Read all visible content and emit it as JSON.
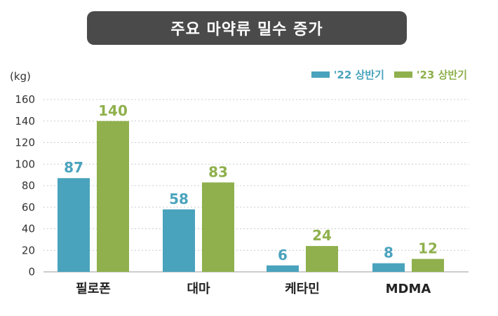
{
  "title": "주요 마약류 밀수 증가",
  "colors": {
    "title_bg": "#4a4a4a",
    "series_2022": "#4aa3bd",
    "series_2023": "#8fb04c",
    "grid": "#cccccc",
    "axis_text": "#333333"
  },
  "chart_data": {
    "type": "bar",
    "title": "",
    "unit_label": "(kg)",
    "xlabel": "",
    "ylabel": "",
    "categories": [
      "필로폰",
      "대마",
      "케타민",
      "MDMA"
    ],
    "series": [
      {
        "name": "'22 상반기",
        "values": [
          87,
          58,
          6,
          8
        ]
      },
      {
        "name": "'23 상반기",
        "values": [
          140,
          83,
          24,
          12
        ]
      }
    ],
    "ylim": [
      0,
      160
    ],
    "yticks": [
      "0",
      "20",
      "40",
      "60",
      "80",
      "100",
      "120",
      "140",
      "160"
    ],
    "grid": true,
    "grid_style": "dotted",
    "legend_position": "top-right",
    "data_labels": true
  }
}
